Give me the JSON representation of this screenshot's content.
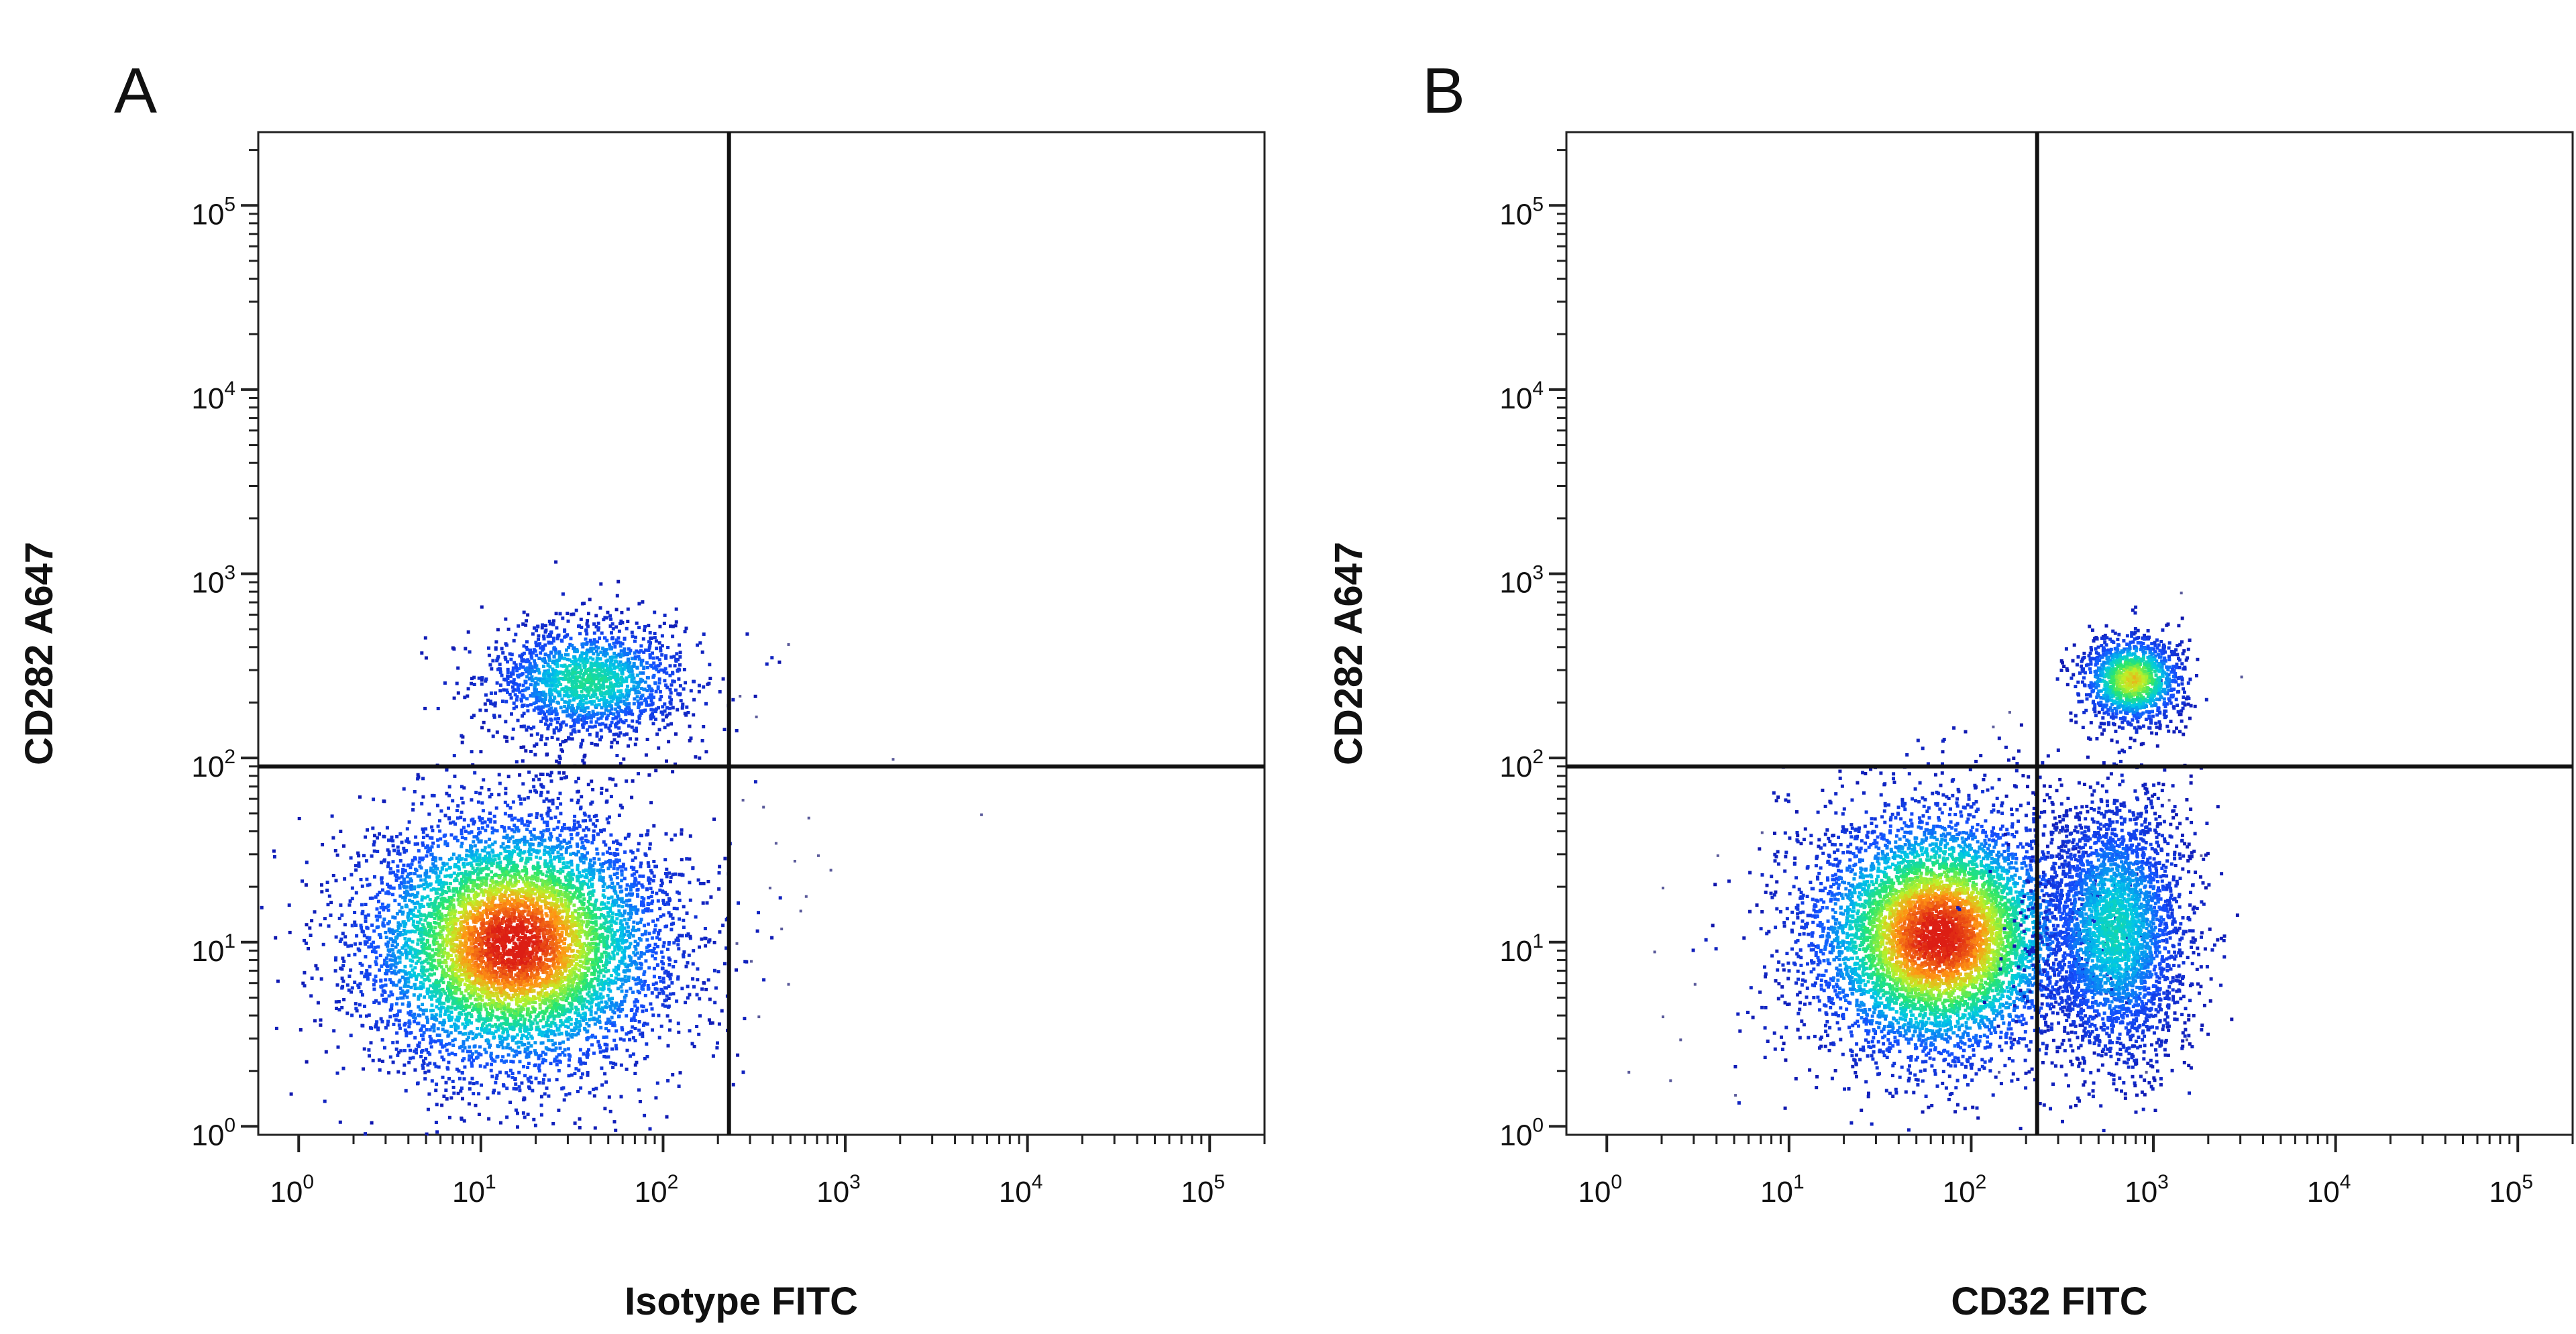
{
  "chart_data": [
    {
      "type": "scatter",
      "subtype": "flow-cytometry-density-dot-plot",
      "panel_label": "A",
      "xlabel": "Isotype FITC",
      "ylabel": "CD282 A647",
      "x_scale": "log",
      "y_scale": "log",
      "xlim": [
        0.6,
        200000
      ],
      "ylim": [
        0.9,
        250000
      ],
      "x_ticks": [
        {
          "base": "10",
          "exp": "0"
        },
        {
          "base": "10",
          "exp": "1"
        },
        {
          "base": "10",
          "exp": "2"
        },
        {
          "base": "10",
          "exp": "3"
        },
        {
          "base": "10",
          "exp": "4"
        },
        {
          "base": "10",
          "exp": "5"
        }
      ],
      "y_ticks": [
        {
          "base": "10",
          "exp": "0"
        },
        {
          "base": "10",
          "exp": "1"
        },
        {
          "base": "10",
          "exp": "2"
        },
        {
          "base": "10",
          "exp": "3"
        },
        {
          "base": "10",
          "exp": "4"
        },
        {
          "base": "10",
          "exp": "5"
        }
      ],
      "x_tick_values": [
        1,
        10,
        100,
        1000,
        10000,
        100000
      ],
      "y_tick_values": [
        1,
        10,
        100,
        1000,
        10000,
        100000
      ],
      "quadrant_gate": {
        "x": 230,
        "y": 90
      },
      "populations": [
        {
          "name": "CD282- main",
          "center": [
            15,
            10
          ],
          "spread": [
            0.42,
            0.36
          ],
          "count": 7000,
          "peak": 1.0
        },
        {
          "name": "CD282+ subset",
          "center": [
            38,
            270
          ],
          "spread": [
            0.28,
            0.16
          ],
          "count": 1700,
          "peak": 0.5
        }
      ],
      "sparse_points": [
        [
          260,
          220
        ],
        [
          320,
          170
        ],
        [
          480,
          420
        ],
        [
          620,
          48
        ],
        [
          520,
          28
        ],
        [
          380,
          20
        ],
        [
          440,
          12
        ],
        [
          300,
          8
        ],
        [
          560,
          15
        ],
        [
          330,
          4
        ],
        [
          700,
          30
        ],
        [
          820,
          25
        ],
        [
          1800,
          100
        ],
        [
          5500,
          50
        ],
        [
          410,
          35
        ],
        [
          270,
          60
        ],
        [
          350,
          55
        ],
        [
          600,
          18
        ],
        [
          250,
          10
        ],
        [
          480,
          6
        ]
      ]
    },
    {
      "type": "scatter",
      "subtype": "flow-cytometry-density-dot-plot",
      "panel_label": "B",
      "xlabel": "CD32 FITC",
      "ylabel": "CD282 A647",
      "x_scale": "log",
      "y_scale": "log",
      "xlim": [
        0.6,
        200000
      ],
      "ylim": [
        0.9,
        250000
      ],
      "x_ticks": [
        {
          "base": "10",
          "exp": "0"
        },
        {
          "base": "10",
          "exp": "1"
        },
        {
          "base": "10",
          "exp": "2"
        },
        {
          "base": "10",
          "exp": "3"
        },
        {
          "base": "10",
          "exp": "4"
        },
        {
          "base": "10",
          "exp": "5"
        }
      ],
      "y_ticks": [
        {
          "base": "10",
          "exp": "0"
        },
        {
          "base": "10",
          "exp": "1"
        },
        {
          "base": "10",
          "exp": "2"
        },
        {
          "base": "10",
          "exp": "3"
        },
        {
          "base": "10",
          "exp": "4"
        },
        {
          "base": "10",
          "exp": "5"
        }
      ],
      "x_tick_values": [
        1,
        10,
        100,
        1000,
        10000,
        100000
      ],
      "y_tick_values": [
        1,
        10,
        100,
        1000,
        10000,
        100000
      ],
      "quadrant_gate": {
        "x": 230,
        "y": 90
      },
      "populations": [
        {
          "name": "CD32-/CD282- main",
          "center": [
            65,
            11
          ],
          "spread": [
            0.36,
            0.34
          ],
          "count": 6500,
          "peak": 1.0
        },
        {
          "name": "CD32+/CD282- subset",
          "center": [
            600,
            12
          ],
          "spread": [
            0.2,
            0.36
          ],
          "count": 3200,
          "peak": 0.45
        },
        {
          "name": "CD32+/CD282+ subset",
          "center": [
            750,
            270
          ],
          "spread": [
            0.14,
            0.12
          ],
          "count": 1300,
          "peak": 0.75
        }
      ],
      "sparse_points": [
        [
          2,
          4
        ],
        [
          3,
          6
        ],
        [
          2.5,
          3
        ],
        [
          1.3,
          2
        ],
        [
          5,
          1.5
        ],
        [
          3000,
          280
        ],
        [
          1400,
          800
        ],
        [
          2,
          20
        ],
        [
          1.8,
          9
        ],
        [
          4,
          30
        ],
        [
          160,
          180
        ],
        [
          130,
          150
        ],
        [
          300,
          40
        ],
        [
          1500,
          3
        ],
        [
          900,
          2
        ],
        [
          1200,
          60
        ],
        [
          1800,
          30
        ],
        [
          2.2,
          1.8
        ],
        [
          7,
          40
        ],
        [
          140,
          2
        ]
      ]
    }
  ]
}
